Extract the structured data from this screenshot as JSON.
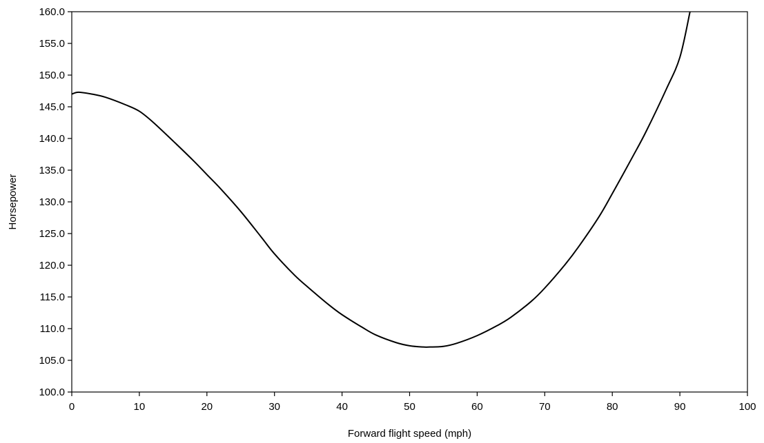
{
  "chart_data": {
    "type": "line",
    "title": "",
    "xlabel": "Forward flight speed (mph)",
    "ylabel": "Horsepower",
    "xlim": [
      0,
      100
    ],
    "ylim": [
      100,
      160
    ],
    "x_ticks": [
      0,
      10,
      20,
      30,
      40,
      50,
      60,
      70,
      80,
      90,
      100
    ],
    "x_tick_labels": [
      "0",
      "10",
      "20",
      "30",
      "40",
      "50",
      "60",
      "70",
      "80",
      "90",
      "100"
    ],
    "y_ticks": [
      100,
      105,
      110,
      115,
      120,
      125,
      130,
      135,
      140,
      145,
      150,
      155,
      160
    ],
    "y_tick_labels": [
      "100.0",
      "105.0",
      "110.0",
      "115.0",
      "120.0",
      "125.0",
      "130.0",
      "135.0",
      "140.0",
      "145.0",
      "150.0",
      "155.0",
      "160.0"
    ],
    "grid": false,
    "legend": "none",
    "colors": {
      "line": "#000000",
      "axes": "#000000",
      "background": "#ffffff"
    },
    "series": [
      {
        "x": [
          0,
          1,
          3,
          5,
          8,
          10,
          12,
          15,
          18,
          20,
          22,
          25,
          28,
          30,
          33,
          35,
          38,
          40,
          43,
          45,
          48,
          50,
          52,
          53,
          55,
          57,
          60,
          63,
          65,
          68,
          70,
          73,
          75,
          78,
          80,
          83,
          85,
          88,
          90,
          91.5
        ],
        "y": [
          147.0,
          147.3,
          147.0,
          146.5,
          145.3,
          144.3,
          142.6,
          139.6,
          136.5,
          134.3,
          132.1,
          128.5,
          124.5,
          121.8,
          118.4,
          116.5,
          113.8,
          112.2,
          110.2,
          109.0,
          107.8,
          107.3,
          107.1,
          107.1,
          107.2,
          107.7,
          108.9,
          110.5,
          111.8,
          114.3,
          116.4,
          120.1,
          122.9,
          127.6,
          131.3,
          137.1,
          141.1,
          147.8,
          152.8,
          160.0
        ]
      }
    ]
  }
}
